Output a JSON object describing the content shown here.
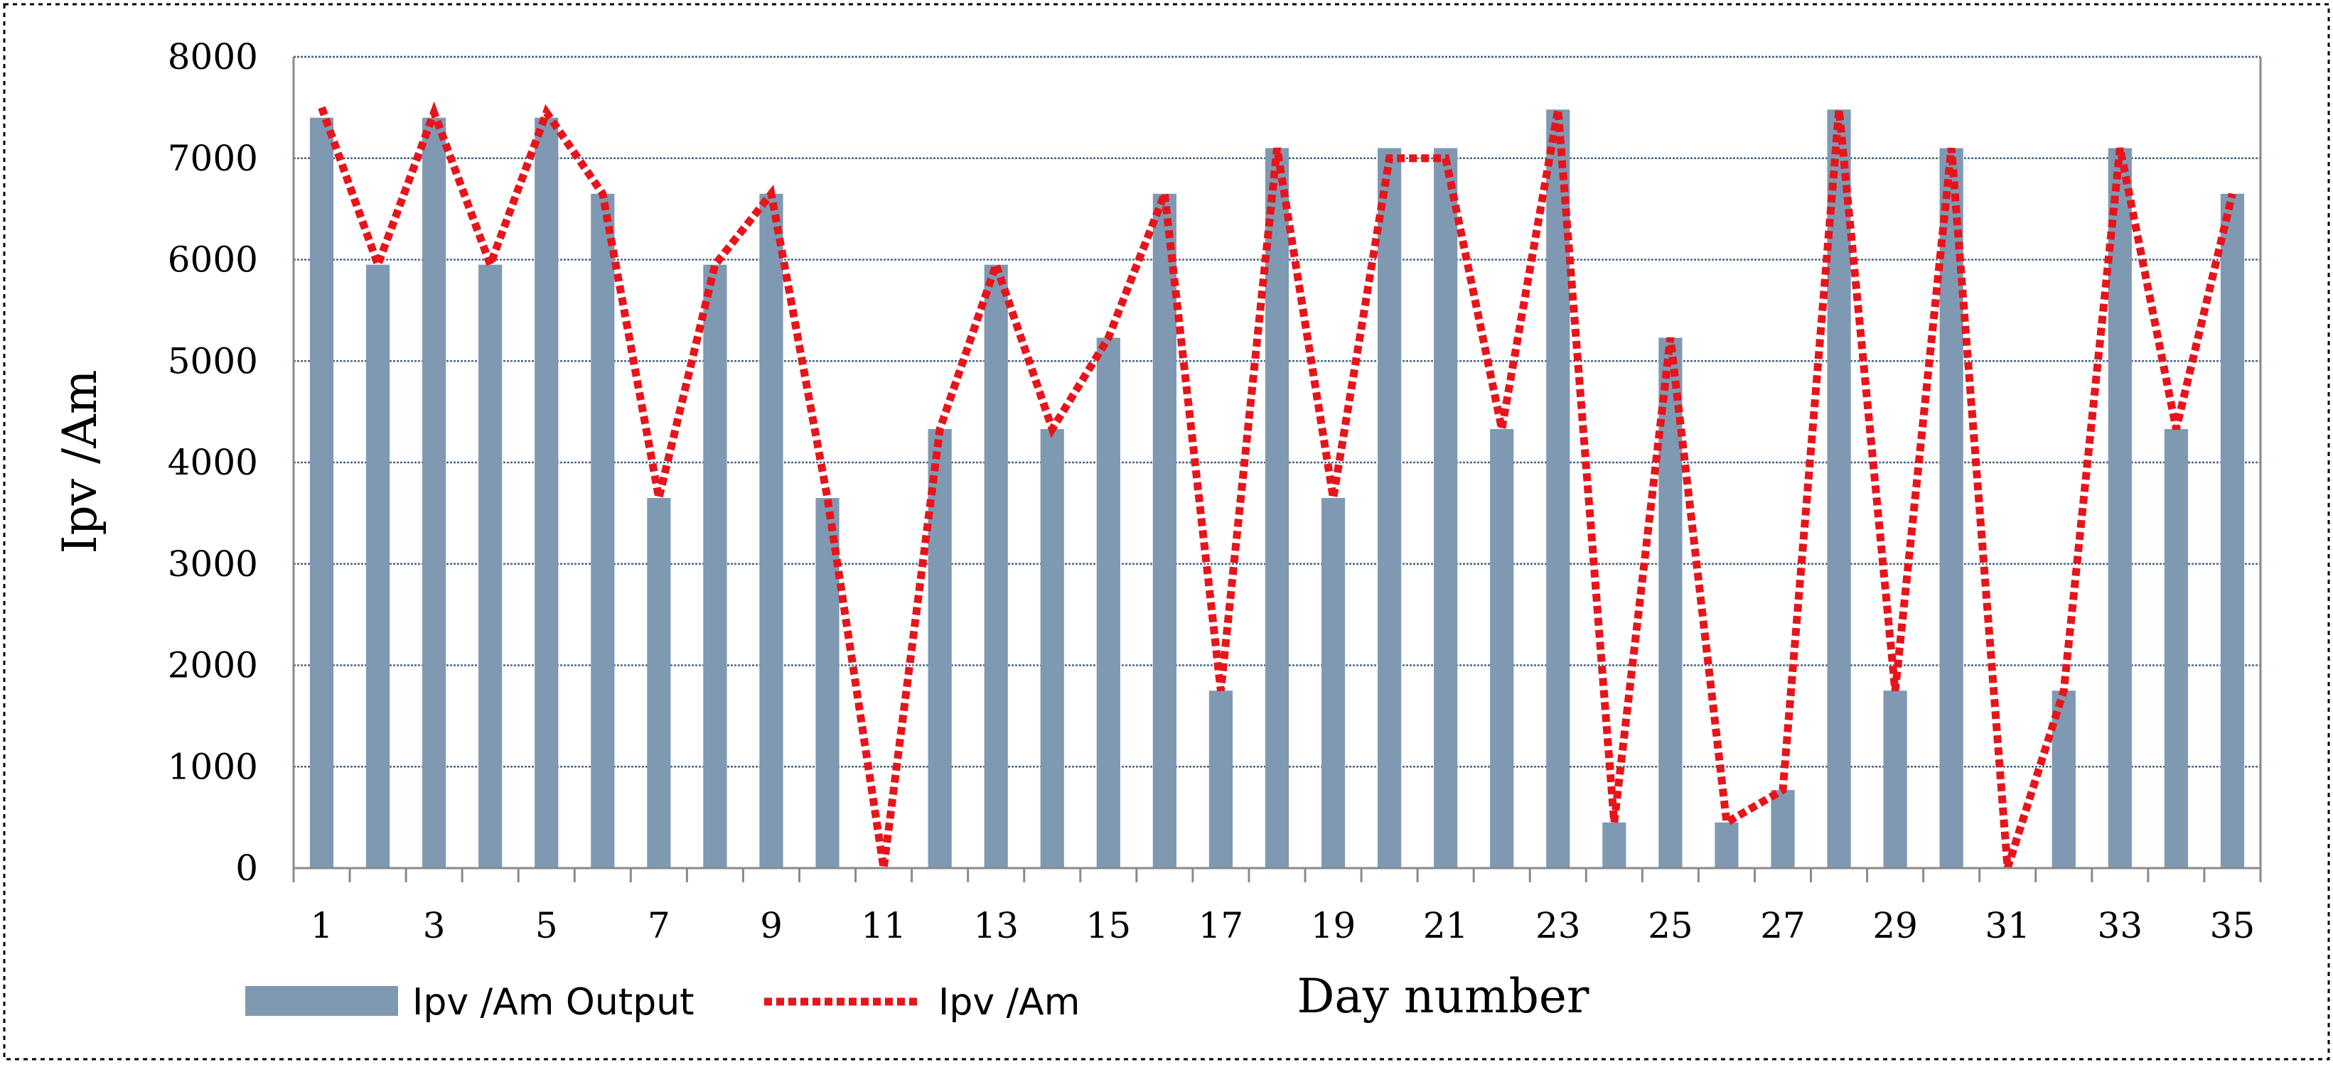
{
  "chart_data": {
    "type": "bar",
    "title": "",
    "xlabel": "Day number",
    "ylabel": "Ipv /Am",
    "ylim": [
      0,
      8000
    ],
    "y_ticks": [
      0,
      1000,
      2000,
      3000,
      4000,
      5000,
      6000,
      7000,
      8000
    ],
    "x_tick_labels": [
      "1",
      "3",
      "5",
      "7",
      "9",
      "11",
      "13",
      "15",
      "17",
      "19",
      "21",
      "23",
      "25",
      "27",
      "29",
      "31",
      "33",
      "35"
    ],
    "x": [
      1,
      2,
      3,
      4,
      5,
      6,
      7,
      8,
      9,
      10,
      11,
      12,
      13,
      14,
      15,
      16,
      17,
      18,
      19,
      20,
      21,
      22,
      23,
      24,
      25,
      26,
      27,
      28,
      29,
      30,
      31,
      32,
      33,
      34,
      35
    ],
    "grid": true,
    "legend_position": "bottom-left",
    "series": [
      {
        "name": "Ipv /Am Output",
        "type": "bar",
        "color": "#7f99b2",
        "values": [
          7400,
          5950,
          7400,
          5950,
          7400,
          6650,
          3650,
          5950,
          6650,
          3650,
          0,
          4330,
          5950,
          4330,
          5230,
          6650,
          1750,
          7100,
          3650,
          7100,
          7100,
          4330,
          7480,
          450,
          5230,
          450,
          770,
          7480,
          1750,
          7100,
          0,
          1750,
          7100,
          4330,
          6650
        ]
      },
      {
        "name": "Ipv /Am",
        "type": "line",
        "style": "dotted",
        "color": "#e8141b",
        "values": [
          7500,
          5950,
          7450,
          5950,
          7450,
          6650,
          3650,
          5950,
          6650,
          3650,
          0,
          4330,
          5950,
          4330,
          5230,
          6650,
          1750,
          7100,
          3650,
          7000,
          7000,
          4330,
          7480,
          450,
          5230,
          450,
          770,
          7480,
          1750,
          7100,
          0,
          1750,
          7100,
          4330,
          6650
        ]
      }
    ]
  }
}
